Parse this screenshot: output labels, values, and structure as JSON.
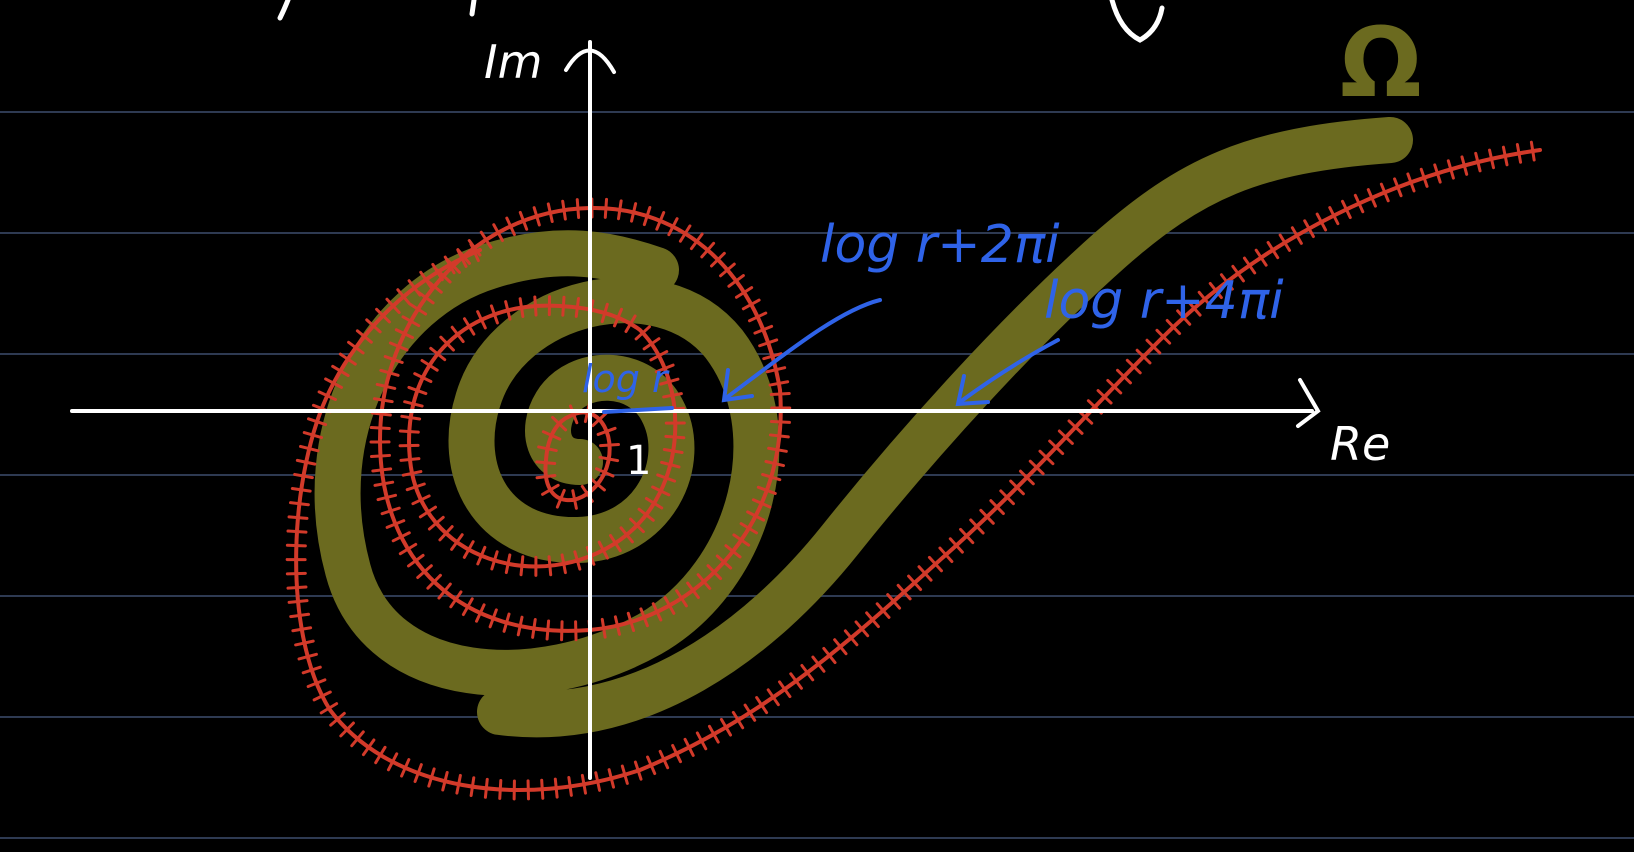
{
  "colors": {
    "background": "#000000",
    "ruled_line": "#2e3a52",
    "axis": "#ffffff",
    "region": "#6b6a1f",
    "branch_cut": "#d23a2a",
    "blue_ink": "#2f63e8"
  },
  "labels": {
    "im": "Im",
    "re": "Re",
    "omega": "Ω",
    "one": "1",
    "log_r": "log r",
    "log_r_2pi": "log r+2πi",
    "log_r_4pi": "log r+4πi"
  }
}
